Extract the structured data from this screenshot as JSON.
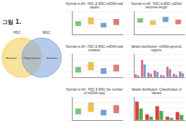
{
  "figure_label": "그림 1.",
  "venn": {
    "left": {
      "label": "HSC",
      "text": "Mutation",
      "color": "#f5cf5a"
    },
    "right": {
      "label": "MSC",
      "text": "Mutation",
      "color": "#86a9e0"
    },
    "overlap": "Polymorphism"
  },
  "chart_data": [
    {
      "type": "box",
      "title": "Normal vs AA : HSC & MSC mtDNA total variant",
      "categories": [
        null,
        null,
        null,
        null
      ],
      "values": [
        [
          22,
          34
        ],
        [
          26,
          44
        ],
        [
          18,
          30
        ],
        [
          24,
          40
        ]
      ],
      "colors": [
        "#7cc47c",
        "#f2c14e",
        "#6fa0d8",
        "#e07a7a"
      ],
      "ylim": [
        0,
        60
      ],
      "yticks": [
        0,
        20,
        40,
        60
      ],
      "grid": true,
      "tick_labels": false
    },
    {
      "type": "box",
      "title": "Normal vs AA : HSC & MSC mtDNA telomere length",
      "categories": [
        null,
        null,
        null,
        null
      ],
      "values": [
        [
          30,
          42
        ],
        [
          24,
          36
        ],
        [
          32,
          46
        ],
        [
          26,
          38
        ]
      ],
      "colors": [
        "#7cc47c",
        "#f2c14e",
        "#6fa0d8",
        "#e07a7a"
      ],
      "ylim": [
        0,
        60
      ],
      "yticks": [
        0,
        20,
        40,
        60
      ],
      "grid": true,
      "tick_labels": false
    },
    {
      "type": "box",
      "title": "Normal vs AA : HSC & MSC mtDNA total mutation",
      "categories": [
        null,
        null,
        null,
        null
      ],
      "values": [
        [
          8,
          18
        ],
        [
          12,
          26
        ],
        [
          6,
          16
        ],
        [
          10,
          22
        ]
      ],
      "colors": [
        "#7cc47c",
        "#f2c14e",
        "#6fa0d8",
        "#e07a7a"
      ],
      "ylim": [
        0,
        40
      ],
      "yticks": [
        0,
        10,
        20,
        30,
        40
      ],
      "grid": true,
      "tick_labels": false
    },
    {
      "type": "bar",
      "title": "Variant distribution- mtDNA genomic regions",
      "categories": [
        null,
        null,
        null,
        null,
        null,
        null,
        null,
        null
      ],
      "series": [
        {
          "color": "#e06c8c",
          "values": [
            5,
            30,
            8,
            12,
            4,
            18,
            6,
            10
          ]
        },
        {
          "color": "#6fa0d8",
          "values": [
            3,
            22,
            6,
            9,
            3,
            14,
            4,
            7
          ]
        }
      ],
      "ylim": [
        0,
        40
      ],
      "yticks": [
        0,
        10,
        20,
        30,
        40
      ],
      "grid": true,
      "tick_labels": false
    },
    {
      "type": "box",
      "title": "Normal vs AA : HSC & MSC the number of mtDNA copy",
      "categories": [
        null,
        null,
        null,
        null
      ],
      "values": [
        [
          10,
          20
        ],
        [
          14,
          30
        ],
        [
          8,
          18
        ],
        [
          12,
          26
        ]
      ],
      "colors": [
        "#7cc47c",
        "#f2c14e",
        "#6fa0d8",
        "#e07a7a"
      ],
      "ylim": [
        0,
        40
      ],
      "yticks": [
        0,
        10,
        20,
        30,
        40
      ],
      "grid": true,
      "tick_labels": false
    },
    {
      "type": "bar",
      "title": "Variant distribution- Classification of Variant",
      "categories": [
        null,
        null,
        null,
        null,
        null
      ],
      "series": [
        {
          "color": "#d9413b",
          "values": [
            32,
            10,
            24,
            6,
            14
          ]
        },
        {
          "color": "#4caf50",
          "values": [
            20,
            6,
            16,
            4,
            9
          ]
        }
      ],
      "ylim": [
        0,
        40
      ],
      "yticks": [
        0,
        10,
        20,
        30,
        40
      ],
      "grid": true,
      "tick_labels": false
    }
  ]
}
